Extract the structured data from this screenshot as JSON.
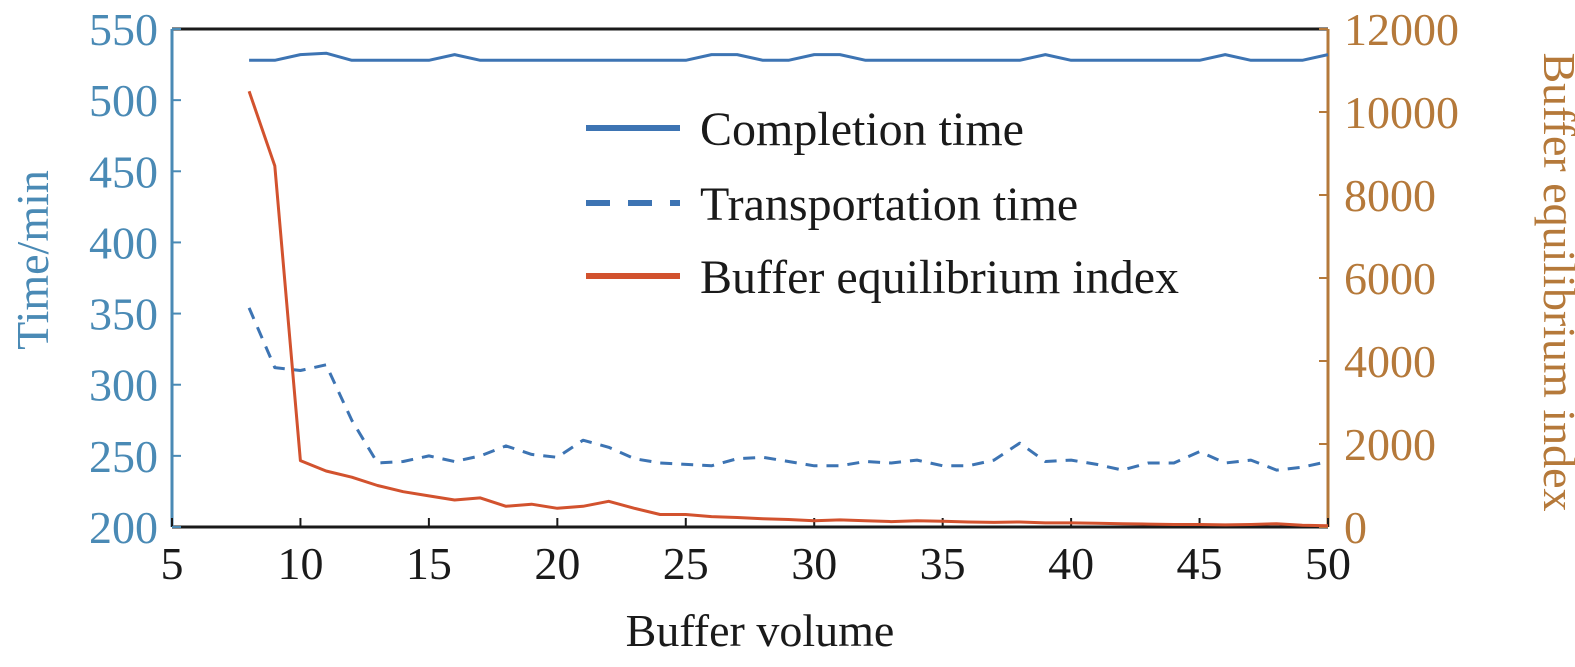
{
  "chart_data": {
    "type": "line",
    "xlabel": "Buffer volume",
    "ylabel_left": "Time/min",
    "ylabel_right": "Buffer equilibrium index",
    "xlim": [
      5,
      50
    ],
    "ylim_left": [
      200,
      550
    ],
    "ylim_right": [
      0,
      12000
    ],
    "xticks": [
      "5",
      "10",
      "15",
      "20",
      "25",
      "30",
      "35",
      "40",
      "45",
      "50"
    ],
    "yticks_left": [
      "550",
      "500",
      "450",
      "400",
      "350",
      "300",
      "250",
      "200"
    ],
    "yticks_right": [
      "12000",
      "10000",
      "8000",
      "6000",
      "4000",
      "2000",
      "0"
    ],
    "grid": false,
    "legend_position": "top-center",
    "colors": {
      "left_axis": "#4a8ab5",
      "right_axis": "#b5793a",
      "completion": "#3d74b3",
      "transportation": "#3d74b3",
      "buffer": "#d2522e",
      "frame": "#1a1a1a"
    },
    "series": [
      {
        "name": "Completion time",
        "axis": "left",
        "style": "solid",
        "x": [
          8,
          9,
          10,
          11,
          12,
          13,
          14,
          15,
          16,
          17,
          18,
          19,
          20,
          21,
          22,
          23,
          24,
          25,
          26,
          27,
          28,
          29,
          30,
          31,
          32,
          33,
          34,
          35,
          36,
          37,
          38,
          39,
          40,
          41,
          42,
          43,
          44,
          45,
          46,
          47,
          48,
          49,
          50
        ],
        "values": [
          528,
          528,
          532,
          533,
          528,
          528,
          528,
          528,
          532,
          528,
          528,
          528,
          528,
          528,
          528,
          528,
          528,
          528,
          532,
          532,
          528,
          528,
          532,
          532,
          528,
          528,
          528,
          528,
          528,
          528,
          528,
          532,
          528,
          528,
          528,
          528,
          528,
          528,
          532,
          528,
          528,
          528,
          532
        ]
      },
      {
        "name": "Transportation time",
        "axis": "left",
        "style": "dashed",
        "x": [
          8,
          9,
          10,
          11,
          12,
          13,
          14,
          15,
          16,
          17,
          18,
          19,
          20,
          21,
          22,
          23,
          24,
          25,
          26,
          27,
          28,
          29,
          30,
          31,
          32,
          33,
          34,
          35,
          36,
          37,
          38,
          39,
          40,
          41,
          42,
          43,
          44,
          45,
          46,
          47,
          48,
          49,
          50
        ],
        "values": [
          354,
          312,
          310,
          314,
          275,
          245,
          246,
          250,
          246,
          250,
          257,
          251,
          249,
          261,
          256,
          248,
          245,
          244,
          243,
          248,
          249,
          246,
          243,
          243,
          246,
          245,
          247,
          243,
          243,
          247,
          259,
          246,
          247,
          244,
          240,
          245,
          245,
          253,
          245,
          247,
          240,
          242,
          246
        ]
      },
      {
        "name": "Buffer equilibrium index",
        "axis": "right",
        "style": "solid",
        "x": [
          8,
          9,
          10,
          11,
          12,
          13,
          14,
          15,
          16,
          17,
          18,
          19,
          20,
          21,
          22,
          23,
          24,
          25,
          26,
          27,
          28,
          29,
          30,
          31,
          32,
          33,
          34,
          35,
          36,
          37,
          38,
          39,
          40,
          41,
          42,
          43,
          44,
          45,
          46,
          47,
          48,
          49,
          50
        ],
        "values": [
          10500,
          8700,
          1600,
          1350,
          1200,
          1000,
          850,
          750,
          650,
          700,
          500,
          550,
          450,
          500,
          620,
          450,
          300,
          300,
          250,
          230,
          200,
          180,
          150,
          170,
          150,
          130,
          150,
          140,
          120,
          110,
          120,
          100,
          100,
          90,
          80,
          70,
          60,
          60,
          50,
          60,
          80,
          40,
          30
        ]
      }
    ]
  }
}
